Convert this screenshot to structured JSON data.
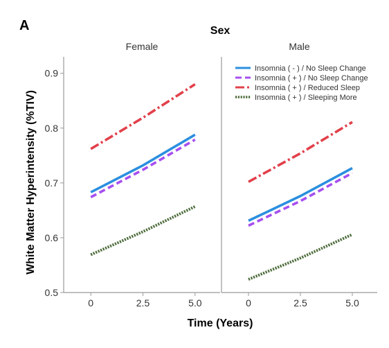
{
  "chart_data": {
    "type": "line",
    "panel_letter": "A",
    "title": "Sex",
    "xlabel": "Time (Years)",
    "ylabel": "White Matter Hyperintensity (%TIV)",
    "xlim": [
      -1.3,
      6.2
    ],
    "ylim": [
      0.5,
      0.93
    ],
    "x_ticks": [
      0,
      2.5,
      5.0
    ],
    "x_tick_labels": [
      "0",
      "2.5",
      "5.0"
    ],
    "y_ticks": [
      0.5,
      0.6,
      0.7,
      0.8,
      0.9
    ],
    "y_tick_labels": [
      "0.5",
      "0.6",
      "0.7",
      "0.8",
      "0.9"
    ],
    "grid": false,
    "legend_position": "top-right of second panel",
    "panels": [
      {
        "label": "Female",
        "series": [
          {
            "name": "Insomnia ( - ) / No Sleep Change",
            "x": [
              0,
              2.5,
              5.0
            ],
            "y": [
              0.683,
              0.732,
              0.788
            ],
            "color": "#2b8fdf",
            "dash": "solid"
          },
          {
            "name": "Insomnia ( + ) / No Sleep Change",
            "x": [
              0,
              2.5,
              5.0
            ],
            "y": [
              0.674,
              0.724,
              0.779
            ],
            "color": "#a64ff0",
            "dash": "dash"
          },
          {
            "name": "Insomnia ( + ) / Reduced Sleep",
            "x": [
              0,
              2.5,
              5.0
            ],
            "y": [
              0.762,
              0.819,
              0.88
            ],
            "color": "#e2404a",
            "dash": "dashdot"
          },
          {
            "name": "Insomnia ( + ) / Sleeping More",
            "x": [
              0,
              2.5,
              5.0
            ],
            "y": [
              0.569,
              0.611,
              0.657
            ],
            "color": "#4d6b3b",
            "dash": "dot"
          }
        ]
      },
      {
        "label": "Male",
        "series": [
          {
            "name": "Insomnia ( - ) / No Sleep Change",
            "x": [
              0,
              2.5,
              5.0
            ],
            "y": [
              0.631,
              0.676,
              0.727
            ],
            "color": "#2b8fdf",
            "dash": "solid"
          },
          {
            "name": "Insomnia ( + ) / No Sleep Change",
            "x": [
              0,
              2.5,
              5.0
            ],
            "y": [
              0.622,
              0.667,
              0.718
            ],
            "color": "#a64ff0",
            "dash": "dash"
          },
          {
            "name": "Insomnia ( + ) / Reduced Sleep",
            "x": [
              0,
              2.5,
              5.0
            ],
            "y": [
              0.702,
              0.754,
              0.811
            ],
            "color": "#e2404a",
            "dash": "dashdot"
          },
          {
            "name": "Insomnia ( + ) / Sleeping More",
            "x": [
              0,
              2.5,
              5.0
            ],
            "y": [
              0.524,
              0.563,
              0.606
            ],
            "color": "#4d6b3b",
            "dash": "dot"
          }
        ]
      }
    ]
  }
}
